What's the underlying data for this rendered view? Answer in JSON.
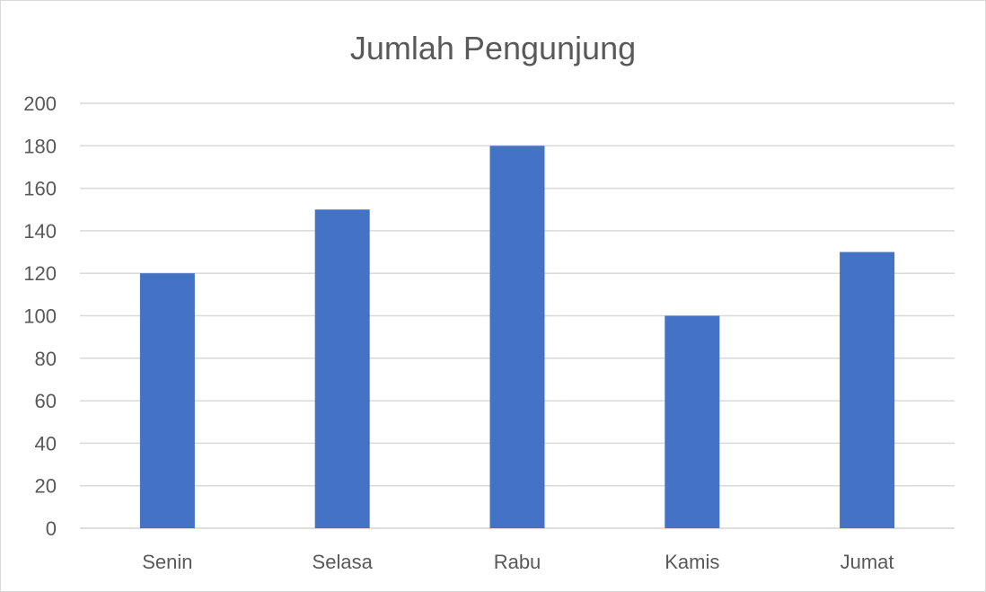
{
  "chart_data": {
    "type": "bar",
    "title": "Jumlah Pengunjung",
    "categories": [
      "Senin",
      "Selasa",
      "Rabu",
      "Kamis",
      "Jumat"
    ],
    "values": [
      120,
      150,
      180,
      100,
      130
    ],
    "ylim": [
      0,
      200
    ],
    "yticks": [
      "0",
      "20",
      "40",
      "60",
      "80",
      "100",
      "120",
      "140",
      "160",
      "180",
      "200"
    ],
    "grid": true,
    "legend": "none",
    "bar_color": "#4472C4",
    "grid_color": "#d9d9d9",
    "text_color": "#595959"
  }
}
